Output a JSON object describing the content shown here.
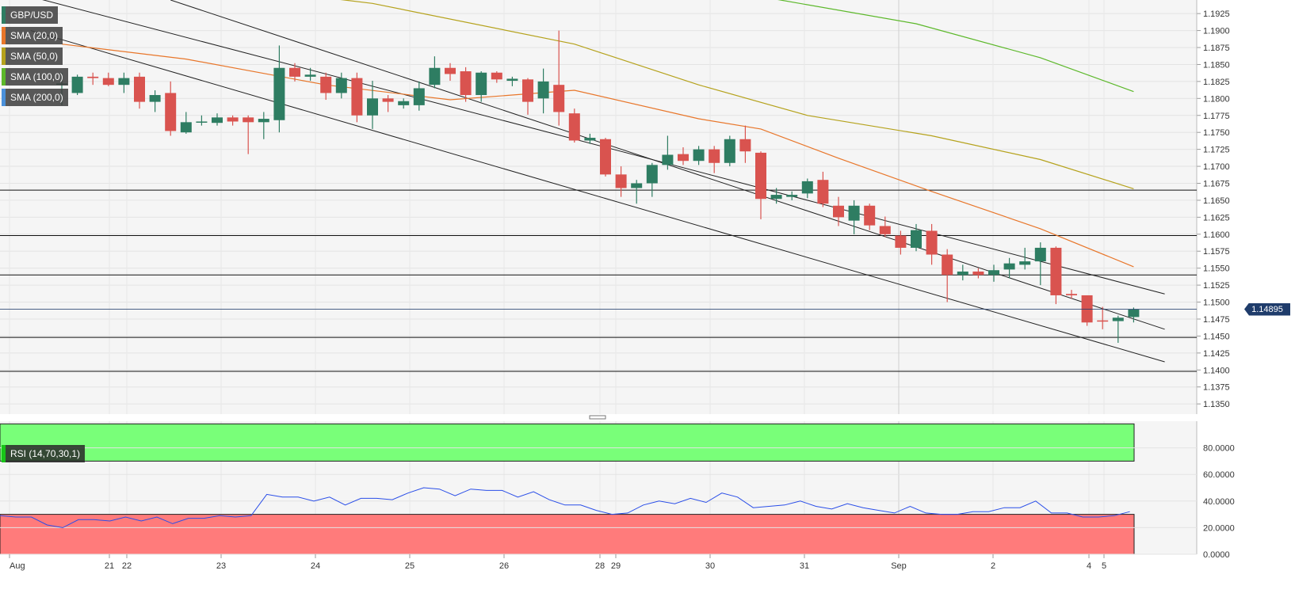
{
  "symbol": "GBP/USD",
  "last_price": "1.14895",
  "colors": {
    "bull": "#2e7d62",
    "bear": "#d9534f",
    "sma20": "#e8762a",
    "sma50": "#b5a21c",
    "sma100": "#5cb82a",
    "sma200": "#4a90d9",
    "channel": "#222222",
    "rsi_line": "#2a4ee8",
    "rsi_overbought": "#79ff79",
    "rsi_oversold": "#ff7b7b"
  },
  "indicators": [
    {
      "label": "SMA (20,0)",
      "color": "#e8762a"
    },
    {
      "label": "SMA (50,0)",
      "color": "#b5a21c"
    },
    {
      "label": "SMA (100,0)",
      "color": "#5cb82a"
    },
    {
      "label": "SMA (200,0)",
      "color": "#4a90d9"
    }
  ],
  "rsi_label": "RSI (14,70,30,1)",
  "chart_data": [
    {
      "type": "candlestick",
      "title": "GBP/USD",
      "ylim": [
        1.1335,
        1.1945
      ],
      "y_ticks": [
        "1.1925",
        "1.1900",
        "1.1875",
        "1.1850",
        "1.1825",
        "1.1800",
        "1.1775",
        "1.1750",
        "1.1725",
        "1.1700",
        "1.1675",
        "1.1650",
        "1.1625",
        "1.1600",
        "1.1575",
        "1.1550",
        "1.1525",
        "1.1500",
        "1.1475",
        "1.1450",
        "1.1425",
        "1.1400",
        "1.1375",
        "1.1350"
      ],
      "x_ticks": [
        "Aug",
        "21",
        "22",
        "23",
        "24",
        "25",
        "26",
        "28",
        "29",
        "30",
        "31",
        "Sep",
        "2",
        "4",
        "5"
      ],
      "horizontal_levels": [
        1.1665,
        1.1598,
        1.154,
        1.1448,
        1.1398
      ],
      "candles": [
        {
          "o": 1.1822,
          "h": 1.1838,
          "l": 1.179,
          "c": 1.1822
        },
        {
          "o": 1.1808,
          "h": 1.1835,
          "l": 1.1805,
          "c": 1.1832
        },
        {
          "o": 1.1832,
          "h": 1.1838,
          "l": 1.182,
          "c": 1.183
        },
        {
          "o": 1.183,
          "h": 1.1838,
          "l": 1.1818,
          "c": 1.182
        },
        {
          "o": 1.182,
          "h": 1.1838,
          "l": 1.1808,
          "c": 1.183
        },
        {
          "o": 1.1832,
          "h": 1.1838,
          "l": 1.1785,
          "c": 1.1795
        },
        {
          "o": 1.1795,
          "h": 1.1812,
          "l": 1.178,
          "c": 1.1805
        },
        {
          "o": 1.1808,
          "h": 1.1825,
          "l": 1.1745,
          "c": 1.1752
        },
        {
          "o": 1.175,
          "h": 1.178,
          "l": 1.1748,
          "c": 1.1765
        },
        {
          "o": 1.1765,
          "h": 1.1775,
          "l": 1.176,
          "c": 1.1766
        },
        {
          "o": 1.1764,
          "h": 1.1778,
          "l": 1.176,
          "c": 1.1772
        },
        {
          "o": 1.1772,
          "h": 1.1775,
          "l": 1.176,
          "c": 1.1766
        },
        {
          "o": 1.1772,
          "h": 1.1775,
          "l": 1.1718,
          "c": 1.1765
        },
        {
          "o": 1.1765,
          "h": 1.178,
          "l": 1.174,
          "c": 1.177
        },
        {
          "o": 1.1768,
          "h": 1.1878,
          "l": 1.175,
          "c": 1.1845
        },
        {
          "o": 1.1845,
          "h": 1.1852,
          "l": 1.1825,
          "c": 1.1832
        },
        {
          "o": 1.1832,
          "h": 1.1845,
          "l": 1.1826,
          "c": 1.1835
        },
        {
          "o": 1.1832,
          "h": 1.1838,
          "l": 1.1798,
          "c": 1.1808
        },
        {
          "o": 1.1808,
          "h": 1.1838,
          "l": 1.18,
          "c": 1.183
        },
        {
          "o": 1.183,
          "h": 1.1838,
          "l": 1.1765,
          "c": 1.1775
        },
        {
          "o": 1.1775,
          "h": 1.1826,
          "l": 1.1755,
          "c": 1.18
        },
        {
          "o": 1.18,
          "h": 1.1805,
          "l": 1.178,
          "c": 1.1795
        },
        {
          "o": 1.179,
          "h": 1.18,
          "l": 1.1785,
          "c": 1.1796
        },
        {
          "o": 1.179,
          "h": 1.1825,
          "l": 1.1782,
          "c": 1.1815
        },
        {
          "o": 1.182,
          "h": 1.1862,
          "l": 1.1815,
          "c": 1.1845
        },
        {
          "o": 1.1845,
          "h": 1.1852,
          "l": 1.1826,
          "c": 1.1836
        },
        {
          "o": 1.184,
          "h": 1.1846,
          "l": 1.1795,
          "c": 1.1805
        },
        {
          "o": 1.1805,
          "h": 1.184,
          "l": 1.1795,
          "c": 1.1838
        },
        {
          "o": 1.1838,
          "h": 1.184,
          "l": 1.1823,
          "c": 1.1828
        },
        {
          "o": 1.1826,
          "h": 1.1832,
          "l": 1.1818,
          "c": 1.1829
        },
        {
          "o": 1.1828,
          "h": 1.183,
          "l": 1.1776,
          "c": 1.1795
        },
        {
          "o": 1.18,
          "h": 1.1844,
          "l": 1.1778,
          "c": 1.1825
        },
        {
          "o": 1.182,
          "h": 1.19,
          "l": 1.176,
          "c": 1.178
        },
        {
          "o": 1.1778,
          "h": 1.1785,
          "l": 1.1735,
          "c": 1.1738
        },
        {
          "o": 1.1738,
          "h": 1.1748,
          "l": 1.1733,
          "c": 1.1742
        },
        {
          "o": 1.174,
          "h": 1.1742,
          "l": 1.1685,
          "c": 1.1688
        },
        {
          "o": 1.1688,
          "h": 1.17,
          "l": 1.1655,
          "c": 1.1668
        },
        {
          "o": 1.1668,
          "h": 1.168,
          "l": 1.1645,
          "c": 1.1675
        },
        {
          "o": 1.1675,
          "h": 1.1705,
          "l": 1.1655,
          "c": 1.1702
        },
        {
          "o": 1.1702,
          "h": 1.1745,
          "l": 1.1695,
          "c": 1.1717
        },
        {
          "o": 1.1718,
          "h": 1.1728,
          "l": 1.1702,
          "c": 1.1708
        },
        {
          "o": 1.1708,
          "h": 1.173,
          "l": 1.1702,
          "c": 1.1725
        },
        {
          "o": 1.1725,
          "h": 1.173,
          "l": 1.169,
          "c": 1.1705
        },
        {
          "o": 1.1705,
          "h": 1.1745,
          "l": 1.17,
          "c": 1.174
        },
        {
          "o": 1.174,
          "h": 1.176,
          "l": 1.1705,
          "c": 1.1722
        },
        {
          "o": 1.172,
          "h": 1.1722,
          "l": 1.1622,
          "c": 1.1652
        },
        {
          "o": 1.1652,
          "h": 1.1668,
          "l": 1.1645,
          "c": 1.1658
        },
        {
          "o": 1.1655,
          "h": 1.1663,
          "l": 1.165,
          "c": 1.1658
        },
        {
          "o": 1.166,
          "h": 1.1682,
          "l": 1.1653,
          "c": 1.1678
        },
        {
          "o": 1.168,
          "h": 1.1692,
          "l": 1.164,
          "c": 1.1645
        },
        {
          "o": 1.1642,
          "h": 1.1655,
          "l": 1.1612,
          "c": 1.1625
        },
        {
          "o": 1.162,
          "h": 1.165,
          "l": 1.16,
          "c": 1.1642
        },
        {
          "o": 1.1642,
          "h": 1.1645,
          "l": 1.1606,
          "c": 1.1613
        },
        {
          "o": 1.1612,
          "h": 1.1626,
          "l": 1.1596,
          "c": 1.16
        },
        {
          "o": 1.1598,
          "h": 1.1605,
          "l": 1.157,
          "c": 1.158
        },
        {
          "o": 1.158,
          "h": 1.1615,
          "l": 1.1575,
          "c": 1.1606
        },
        {
          "o": 1.1605,
          "h": 1.1615,
          "l": 1.1555,
          "c": 1.157
        },
        {
          "o": 1.157,
          "h": 1.1578,
          "l": 1.15,
          "c": 1.154
        },
        {
          "o": 1.154,
          "h": 1.1555,
          "l": 1.1532,
          "c": 1.1545
        },
        {
          "o": 1.1545,
          "h": 1.155,
          "l": 1.1535,
          "c": 1.154
        },
        {
          "o": 1.154,
          "h": 1.1555,
          "l": 1.153,
          "c": 1.1547
        },
        {
          "o": 1.1548,
          "h": 1.1565,
          "l": 1.1535,
          "c": 1.1557
        },
        {
          "o": 1.1555,
          "h": 1.158,
          "l": 1.1548,
          "c": 1.156
        },
        {
          "o": 1.156,
          "h": 1.1588,
          "l": 1.1525,
          "c": 1.158
        },
        {
          "o": 1.158,
          "h": 1.1582,
          "l": 1.1497,
          "c": 1.151
        },
        {
          "o": 1.1512,
          "h": 1.1518,
          "l": 1.1505,
          "c": 1.151
        },
        {
          "o": 1.151,
          "h": 1.151,
          "l": 1.1465,
          "c": 1.147
        },
        {
          "o": 1.1473,
          "h": 1.1493,
          "l": 1.146,
          "c": 1.1472
        },
        {
          "o": 1.1472,
          "h": 1.148,
          "l": 1.144,
          "c": 1.1477
        },
        {
          "o": 1.1478,
          "h": 1.1492,
          "l": 1.147,
          "c": 1.1489
        }
      ],
      "sma20": [
        [
          0,
          1.188
        ],
        [
          8,
          1.1858
        ],
        [
          17,
          1.182
        ],
        [
          25,
          1.1798
        ],
        [
          33,
          1.1812
        ],
        [
          41,
          1.177
        ],
        [
          45,
          1.1755
        ],
        [
          50,
          1.1712
        ],
        [
          56,
          1.1663
        ],
        [
          63,
          1.1608
        ],
        [
          69,
          1.1552
        ]
      ],
      "sma50": [
        [
          0,
          1.1995
        ],
        [
          20,
          1.194
        ],
        [
          33,
          1.188
        ],
        [
          41,
          1.182
        ],
        [
          48,
          1.1775
        ],
        [
          56,
          1.1745
        ],
        [
          63,
          1.171
        ],
        [
          69,
          1.1667
        ]
      ],
      "sma100": [
        [
          0,
          1.204
        ],
        [
          45,
          1.195
        ],
        [
          55,
          1.191
        ],
        [
          63,
          1.186
        ],
        [
          69,
          1.181
        ]
      ],
      "channel_lines": [
        [
          [
            -2,
            1.195
          ],
          [
            71,
            1.1512
          ]
        ],
        [
          [
            7,
            1.1945
          ],
          [
            71,
            1.146
          ]
        ],
        [
          [
            -2,
            1.19
          ],
          [
            71,
            1.1412
          ]
        ]
      ]
    },
    {
      "type": "line",
      "title": "RSI (14,70,30,1)",
      "ylim": [
        0,
        100
      ],
      "y_ticks": [
        "80.0000",
        "60.0000",
        "40.0000",
        "20.0000",
        "0.0000"
      ],
      "overbought": 70,
      "oversold": 30,
      "values": [
        29,
        28,
        28,
        22,
        20,
        26,
        26,
        25,
        28,
        25,
        28,
        23,
        27,
        27,
        29,
        28,
        29,
        45,
        43,
        43,
        40,
        43,
        37,
        42,
        42,
        41,
        46,
        50,
        49,
        44,
        49,
        48,
        48,
        43,
        47,
        41,
        37,
        37,
        33,
        30,
        31,
        37,
        40,
        38,
        42,
        39,
        46,
        43,
        35,
        36,
        37,
        40,
        36,
        34,
        38,
        35,
        33,
        31,
        36,
        31,
        30,
        30,
        32,
        32,
        35,
        35,
        40,
        31,
        31,
        28,
        28,
        29,
        32
      ]
    }
  ]
}
